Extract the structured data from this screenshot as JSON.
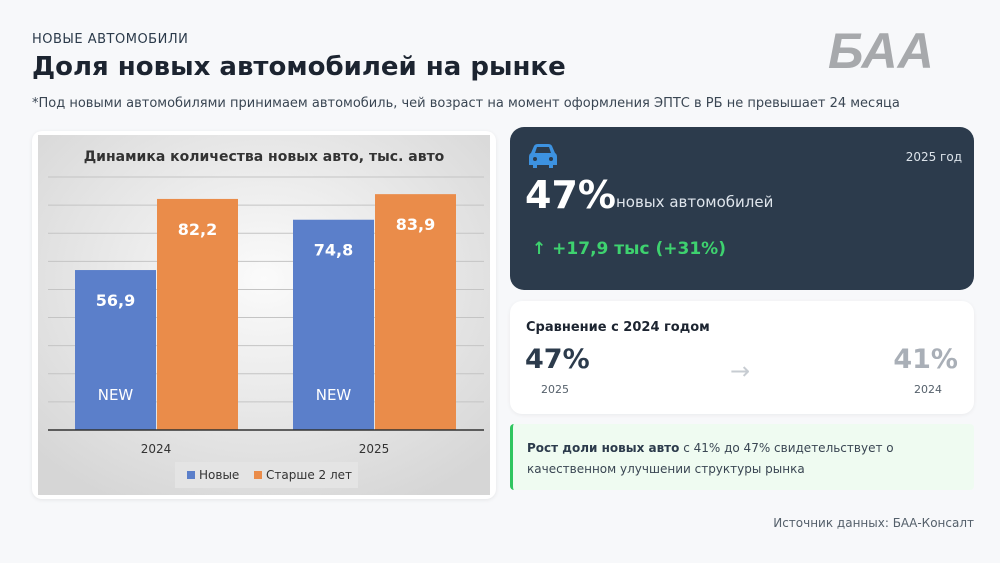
{
  "header": {
    "kicker": "НОВЫЕ АВТОМОБИЛИ",
    "title": "Доля новых автомобилей на рынке",
    "footnote": "*Под новыми автомобилями принимаем автомобиль, чей возраст на момент оформления ЭПТС в РБ не превышает 24 месяца",
    "logo_text": "БАА"
  },
  "chart_data": {
    "type": "bar",
    "title": "Динамика количества новых авто, тыс. авто",
    "categories": [
      "2024",
      "2025"
    ],
    "series": [
      {
        "name": "Новые",
        "values": [
          56.9,
          74.8
        ],
        "color": "#5b7fca",
        "labels": [
          "56,9",
          "74,8"
        ],
        "inner_label": "NEW"
      },
      {
        "name": "Старше 2 лет",
        "values": [
          82.2,
          83.9
        ],
        "color": "#ea8c4a",
        "labels": [
          "82,2",
          "83,9"
        ]
      }
    ],
    "ylim": [
      0,
      90
    ],
    "grid": true,
    "grid_step": 10,
    "legend": "bottom",
    "xlabel": "",
    "ylabel": ""
  },
  "kpi": {
    "icon": "car-icon",
    "year": "2025 год",
    "value": "47%",
    "label": "новых автомобилей",
    "delta": "↑  +17,9 тыс (+31%)",
    "delta_color": "#3ed26f"
  },
  "comparison": {
    "title": "Сравнение с 2024 годом",
    "current_value": "47%",
    "current_year": "2025",
    "arrow": "→",
    "previous_value": "41%",
    "previous_year": "2024"
  },
  "insight": {
    "bold": "Рост доли новых авто",
    "text": " с 41% до 47% свидетельствует о качественном улучшении структуры рынка"
  },
  "source": "Источник данных: БАА-Консалт"
}
